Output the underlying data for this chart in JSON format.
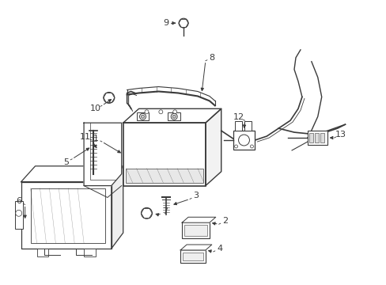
{
  "bg_color": "#ffffff",
  "line_color": "#3a3a3a",
  "fig_width": 4.89,
  "fig_height": 3.6,
  "dpi": 100
}
